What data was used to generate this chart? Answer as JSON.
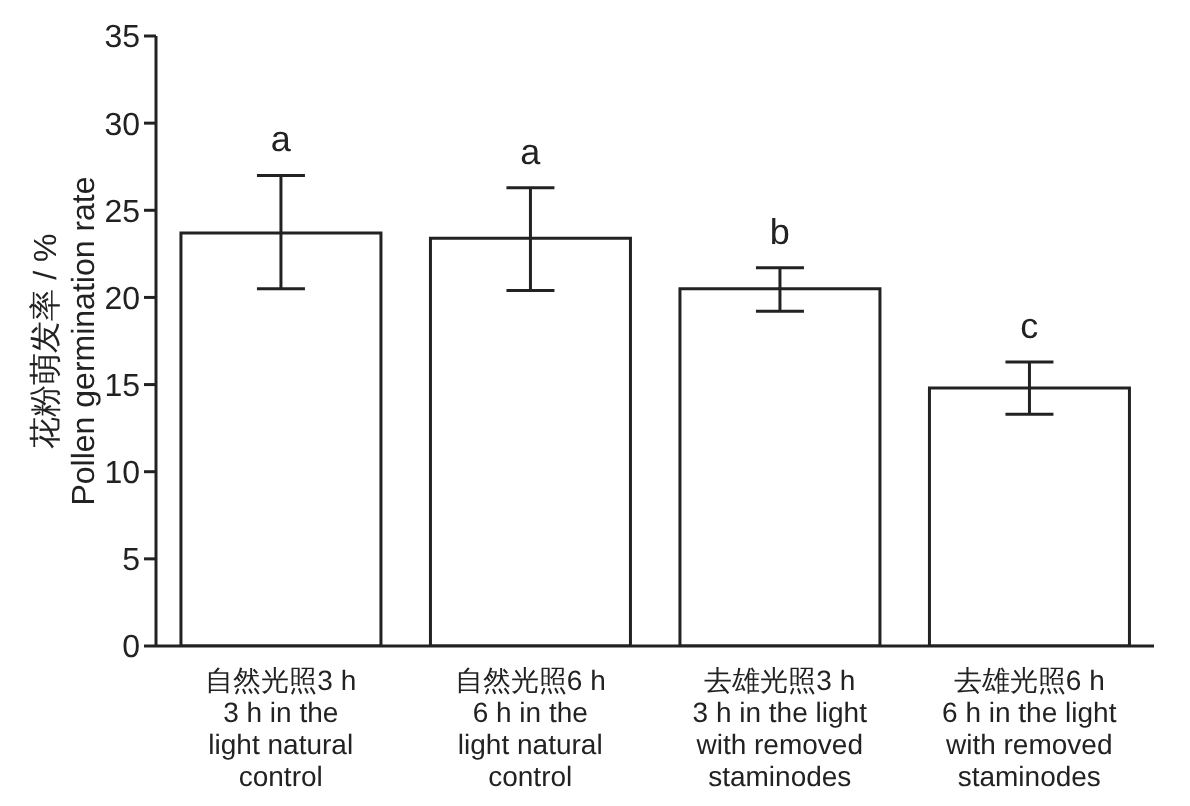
{
  "chart_data": {
    "type": "bar",
    "categories": [
      "自然光照3 h\n3 h in the\nlight natural\ncontrol",
      "自然光照6 h\n6 h in the\nlight natural\ncontrol",
      "去雄光照3 h\n3 h in the light\nwith removed\nstaminodes",
      "去雄光照6 h\n6 h in the light\nwith removed\nstaminodes"
    ],
    "values": [
      23.7,
      23.4,
      20.5,
      14.8
    ],
    "errors": [
      [
        20.5,
        27.0
      ],
      [
        20.4,
        26.3
      ],
      [
        19.2,
        21.7
      ],
      [
        13.3,
        16.3
      ]
    ],
    "color": "#ffffff",
    "ylabel": "花粉萌发率 / %\nPollen germination rate",
    "ylim": [
      0,
      35
    ],
    "yticks": [
      0,
      5,
      10,
      15,
      20,
      25,
      30,
      35
    ],
    "annotations": [
      "a",
      "a",
      "b",
      "c"
    ],
    "grid": false,
    "legend": false
  }
}
